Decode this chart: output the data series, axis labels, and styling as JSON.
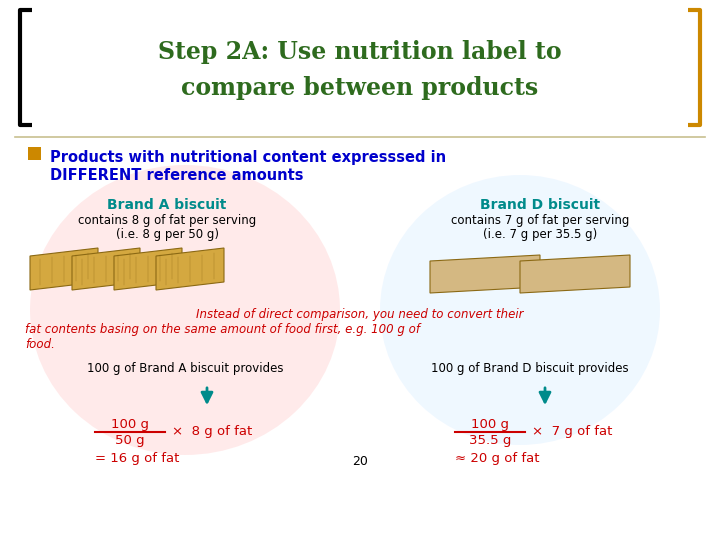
{
  "title_line1": "Step 2A: Use nutrition label to",
  "title_line2": "compare between products",
  "title_color": "#2E6B1E",
  "bullet_color": "#CC8800",
  "bullet_text_color": "#0000CC",
  "brand_a_title": "Brand A biscuit",
  "brand_d_title": "Brand D biscuit",
  "brand_color": "#008B8B",
  "brand_a_sub1": "contains 8 g of fat per serving",
  "brand_a_sub2": "(i.e. 8 g per 50 g)",
  "brand_d_sub1": "contains 7 g of fat per serving",
  "brand_d_sub2": "(i.e. 7 g per 35.5 g)",
  "middle_text_color": "#CC0000",
  "brand_a_bottom": "100 g of Brand A biscuit provides",
  "brand_d_bottom": "100 g of Brand D biscuit provides",
  "formula_color": "#CC0000",
  "arrow_color": "#008B8B",
  "bg_color": "#FFFFFF",
  "bracket_color": "#CC8800",
  "page_number": "20",
  "circle_color_left": "#FFCCCC",
  "circle_color_right": "#CCE8FF",
  "rule_color": "#C8C090",
  "biscuit_color_a": "#D4A840",
  "biscuit_color_d": "#D4B882"
}
